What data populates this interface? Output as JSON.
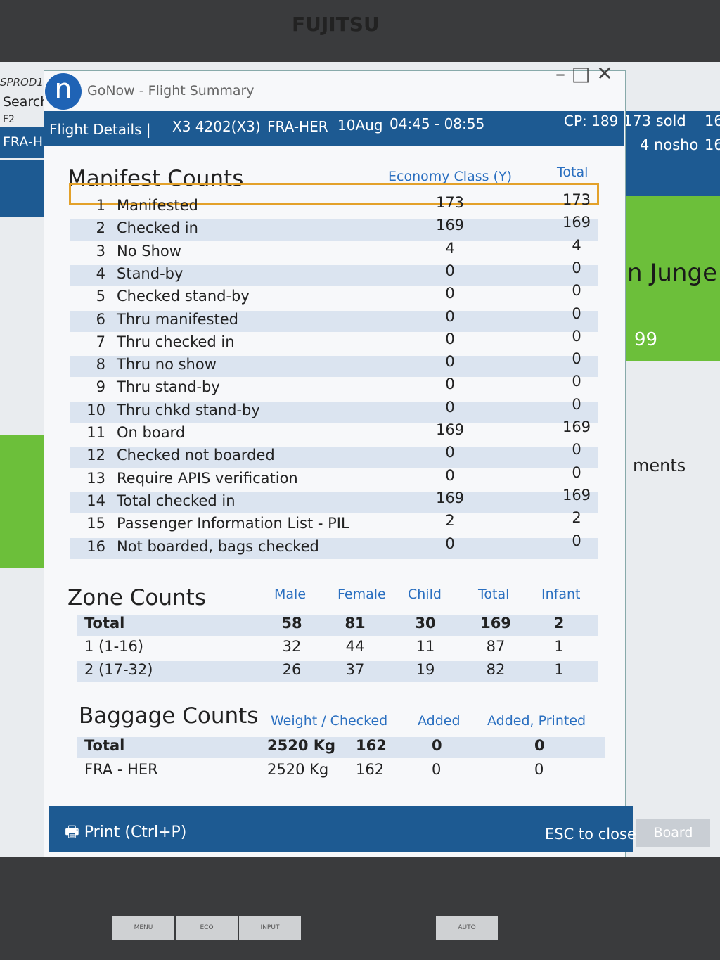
{
  "monitor": {
    "brand": "FUJITSU",
    "buttons": [
      "MENU",
      "ECO",
      "INPUT",
      "AUTO"
    ]
  },
  "background": {
    "env": "SPROD1",
    "search": "Search",
    "key": "F2",
    "route": "FRA-H",
    "sold": "173 sold",
    "sold_count": "16",
    "noshow": "4 nosho",
    "noshow_count": "16",
    "name": "n Junge",
    "number": "99",
    "comments": "ments",
    "board": "Board"
  },
  "window": {
    "logo": "n",
    "title": "GoNow - Flight Summary"
  },
  "header": {
    "label": "Flight Details |",
    "flight": "X3 4202(X3)",
    "route": "FRA-HER",
    "date": "10Aug",
    "time": "04:45 - 08:55",
    "cp": "CP: 189"
  },
  "manifest": {
    "title": "Manifest Counts",
    "columns": [
      "Economy Class (Y)",
      "Total"
    ],
    "rows": [
      [
        1,
        "Manifested",
        173,
        173
      ],
      [
        2,
        "Checked in",
        169,
        169
      ],
      [
        3,
        "No Show",
        4,
        4
      ],
      [
        4,
        "Stand-by",
        0,
        0
      ],
      [
        5,
        "Checked stand-by",
        0,
        0
      ],
      [
        6,
        "Thru manifested",
        0,
        0
      ],
      [
        7,
        "Thru checked in",
        0,
        0
      ],
      [
        8,
        "Thru no show",
        0,
        0
      ],
      [
        9,
        "Thru stand-by",
        0,
        0
      ],
      [
        10,
        "Thru chkd stand-by",
        0,
        0
      ],
      [
        11,
        "On board",
        169,
        169
      ],
      [
        12,
        "Checked not boarded",
        0,
        0
      ],
      [
        13,
        "Require APIS verification",
        0,
        0
      ],
      [
        14,
        "Total checked in",
        169,
        169
      ],
      [
        15,
        "Passenger Information List - PIL",
        2,
        2
      ],
      [
        16,
        "Not boarded, bags checked",
        0,
        0
      ]
    ]
  },
  "zone": {
    "title": "Zone Counts",
    "columns": [
      "Male",
      "Female",
      "Child",
      "Total",
      "Infant"
    ],
    "rows": [
      [
        "Total",
        58,
        81,
        30,
        169,
        2
      ],
      [
        "1 (1-16)",
        32,
        44,
        11,
        87,
        1
      ],
      [
        "2 (17-32)",
        26,
        37,
        19,
        82,
        1
      ]
    ]
  },
  "baggage": {
    "title": "Baggage Counts",
    "columns": [
      "Weight / Checked",
      "Added",
      "Added, Printed"
    ],
    "rows": [
      [
        "Total",
        "2520 Kg",
        162,
        0,
        0
      ],
      [
        "FRA - HER",
        "2520 Kg",
        162,
        0,
        0
      ]
    ]
  },
  "footer": {
    "print": "Print (Ctrl+P)",
    "close": "ESC to close"
  }
}
